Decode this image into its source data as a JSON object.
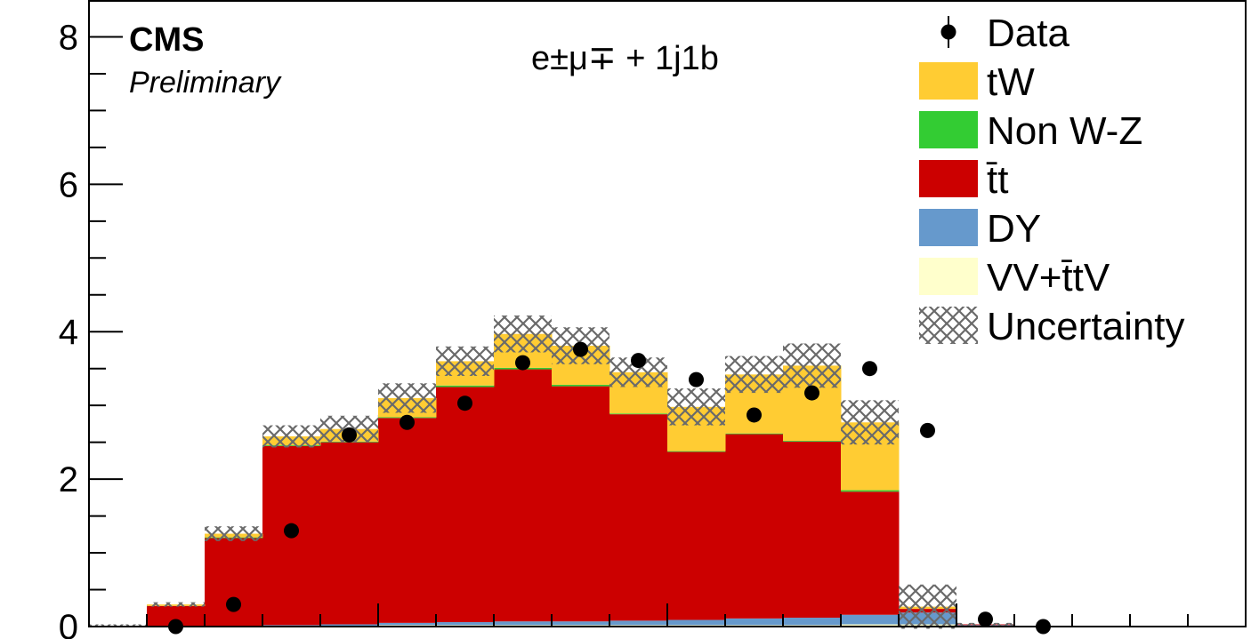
{
  "chart_data": {
    "type": "bar",
    "stacked": true,
    "title": "",
    "region_label": "e±μ∓ + 1j1b",
    "experiment_label": "CMS",
    "status_label": "Preliminary",
    "xlabel": "",
    "ylabel": "",
    "ylim": [
      0,
      8.5
    ],
    "yticks": [
      "0",
      "2",
      "4",
      "6",
      "8"
    ],
    "n_bins": 20,
    "bins": [
      0,
      1,
      2,
      3,
      4,
      5,
      6,
      7,
      8,
      9,
      10,
      11,
      12,
      13,
      14,
      15,
      16,
      17,
      18,
      19
    ],
    "series": [
      {
        "name": "VV+t̄tV",
        "color": "#ffffcc",
        "values": [
          0,
          0,
          0,
          0.01,
          0.01,
          0.02,
          0.02,
          0.02,
          0.02,
          0.02,
          0.02,
          0.02,
          0.02,
          0.03,
          0.03,
          0,
          0,
          0,
          0,
          0
        ]
      },
      {
        "name": "DY",
        "color": "#6699cc",
        "values": [
          0,
          0,
          0,
          0.01,
          0.02,
          0.03,
          0.04,
          0.05,
          0.05,
          0.06,
          0.07,
          0.09,
          0.1,
          0.13,
          0.16,
          0.02,
          0,
          0,
          0,
          0
        ]
      },
      {
        "name": "t̄t",
        "color": "#cc0000",
        "values": [
          0.01,
          0.28,
          1.2,
          2.43,
          2.47,
          2.78,
          3.19,
          3.42,
          3.19,
          2.8,
          2.28,
          2.5,
          2.39,
          1.67,
          0.05,
          0.01,
          0,
          0,
          0,
          0
        ]
      },
      {
        "name": "Non W-Z",
        "color": "#33cc33",
        "values": [
          0,
          0,
          0.01,
          0.01,
          0.01,
          0.01,
          0.02,
          0.02,
          0.02,
          0.01,
          0.01,
          0.01,
          0.01,
          0.02,
          0,
          0,
          0,
          0,
          0,
          0
        ]
      },
      {
        "name": "tW",
        "color": "#ffcc33",
        "values": [
          0,
          0.02,
          0.05,
          0.12,
          0.17,
          0.26,
          0.33,
          0.46,
          0.53,
          0.56,
          0.6,
          0.8,
          1.02,
          0.92,
          0.03,
          0,
          0,
          0,
          0,
          0
        ]
      }
    ],
    "data_series": {
      "name": "Data",
      "values": [
        null,
        0,
        0.3,
        1.3,
        2.6,
        2.77,
        3.03,
        3.58,
        3.76,
        3.61,
        3.35,
        2.87,
        3.17,
        3.5,
        2.66,
        0.1,
        0,
        null,
        null,
        null
      ]
    },
    "uncertainty": {
      "name": "Uncertainty",
      "values": [
        0.02,
        0.03,
        0.1,
        0.15,
        0.18,
        0.2,
        0.2,
        0.25,
        0.25,
        0.2,
        0.25,
        0.25,
        0.3,
        0.3,
        0.3,
        0.02,
        0,
        0,
        0,
        0
      ]
    },
    "legend": {
      "position": "top-right",
      "entries": [
        {
          "label": "Data",
          "kind": "marker"
        },
        {
          "label": "tW",
          "kind": "fill",
          "color": "#ffcc33"
        },
        {
          "label": "Non W-Z",
          "kind": "fill",
          "color": "#33cc33"
        },
        {
          "label": "t̄t",
          "kind": "fill",
          "color": "#cc0000"
        },
        {
          "label": "DY",
          "kind": "fill",
          "color": "#6699cc"
        },
        {
          "label": "VV+t̄tV",
          "kind": "fill",
          "color": "#ffffcc"
        },
        {
          "label": "Uncertainty",
          "kind": "hatch"
        }
      ]
    }
  }
}
